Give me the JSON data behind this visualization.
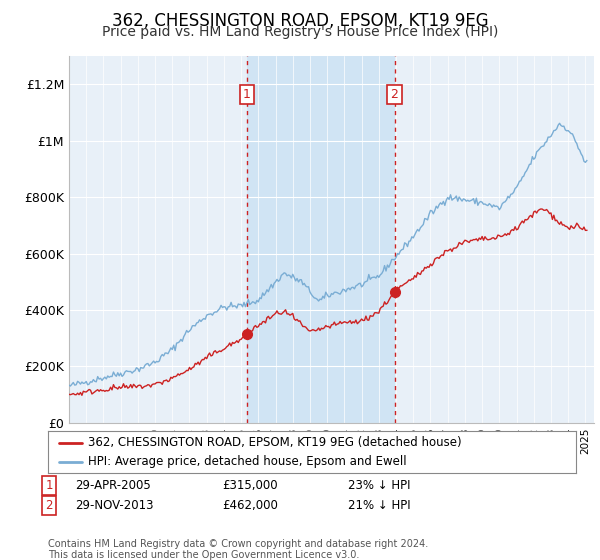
{
  "title": "362, CHESSINGTON ROAD, EPSOM, KT19 9EG",
  "subtitle": "Price paid vs. HM Land Registry's House Price Index (HPI)",
  "legend_line1": "362, CHESSINGTON ROAD, EPSOM, KT19 9EG (detached house)",
  "legend_line2": "HPI: Average price, detached house, Epsom and Ewell",
  "footnote": "Contains HM Land Registry data © Crown copyright and database right 2024.\nThis data is licensed under the Open Government Licence v3.0.",
  "sale1_label": "1",
  "sale1_date": "29-APR-2005",
  "sale1_price": "£315,000",
  "sale1_hpi": "23% ↓ HPI",
  "sale2_label": "2",
  "sale2_date": "29-NOV-2013",
  "sale2_price": "£462,000",
  "sale2_hpi": "21% ↓ HPI",
  "sale1_x": 2005.33,
  "sale1_y": 315000,
  "sale2_x": 2013.91,
  "sale2_y": 462000,
  "vline1_x": 2005.33,
  "vline2_x": 2013.91,
  "xlim": [
    1995,
    2025.5
  ],
  "ylim": [
    0,
    1300000
  ],
  "yticks": [
    0,
    200000,
    400000,
    600000,
    800000,
    1000000,
    1200000
  ],
  "ytick_labels": [
    "£0",
    "£200K",
    "£400K",
    "£600K",
    "£800K",
    "£1M",
    "£1.2M"
  ],
  "background_color": "#ffffff",
  "plot_background": "#e8f0f8",
  "shaded_region_color": "#d0e4f4",
  "red_line_color": "#cc2222",
  "blue_line_color": "#7aadd4",
  "vline_color": "#cc2222",
  "title_fontsize": 12,
  "subtitle_fontsize": 10
}
